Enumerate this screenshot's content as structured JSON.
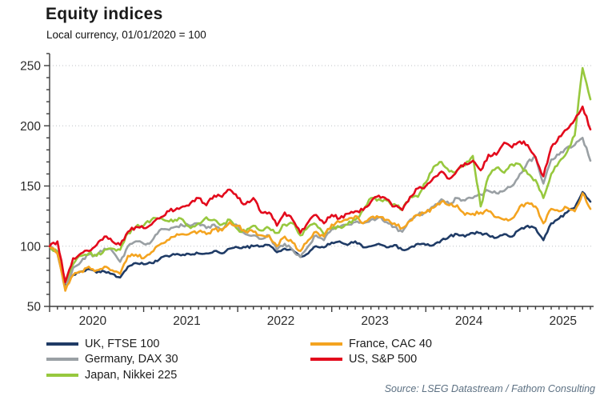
{
  "header": {
    "title": "Equity indices",
    "subtitle": "Local currency, 01/01/2020 = 100"
  },
  "source": "Source: LSEG Datastream / Fathom Consulting",
  "chart_data": {
    "type": "line",
    "title": "Equity indices",
    "subtitle": "Local currency, 01/01/2020 = 100",
    "grid": "horizontal dotted lines at 100, 150, 200, 250",
    "legend_position": "bottom, two columns",
    "ylim": [
      50,
      260
    ],
    "yticks": [
      50,
      100,
      150,
      200,
      250
    ],
    "y_minor_step": 10,
    "x_year_labels": [
      "2020",
      "2021",
      "2022",
      "2023",
      "2024",
      "2025"
    ],
    "x_frequency": "monthly",
    "months": [
      "2020-01",
      "2020-02",
      "2020-03",
      "2020-04",
      "2020-05",
      "2020-06",
      "2020-07",
      "2020-08",
      "2020-09",
      "2020-10",
      "2020-11",
      "2020-12",
      "2021-01",
      "2021-02",
      "2021-03",
      "2021-04",
      "2021-05",
      "2021-06",
      "2021-07",
      "2021-08",
      "2021-09",
      "2021-10",
      "2021-11",
      "2021-12",
      "2022-01",
      "2022-02",
      "2022-03",
      "2022-04",
      "2022-05",
      "2022-06",
      "2022-07",
      "2022-08",
      "2022-09",
      "2022-10",
      "2022-11",
      "2022-12",
      "2023-01",
      "2023-02",
      "2023-03",
      "2023-04",
      "2023-05",
      "2023-06",
      "2023-07",
      "2023-08",
      "2023-09",
      "2023-10",
      "2023-11",
      "2023-12",
      "2024-01",
      "2024-02",
      "2024-03",
      "2024-04",
      "2024-05",
      "2024-06",
      "2024-07",
      "2024-08",
      "2024-09",
      "2024-10",
      "2024-11",
      "2024-12",
      "2025-01",
      "2025-02",
      "2025-03",
      "2025-04",
      "2025-05",
      "2025-06",
      "2025-07",
      "2025-08",
      "2025-09",
      "2025-10"
    ],
    "series": [
      {
        "name": "UK, FTSE 100",
        "color": "#1f3b66",
        "values": [
          100,
          94,
          67,
          76,
          79,
          81,
          78,
          79,
          77,
          74,
          83,
          86,
          85,
          86,
          89,
          92,
          93,
          93,
          93,
          94,
          94,
          96,
          94,
          98,
          99,
          99,
          100,
          100,
          101,
          95,
          98,
          97,
          91,
          94,
          100,
          99,
          103,
          104,
          101,
          104,
          99,
          100,
          102,
          99,
          101,
          97,
          99,
          102,
          101,
          101,
          105,
          108,
          110,
          108,
          111,
          111,
          109,
          107,
          110,
          108,
          114,
          117,
          115,
          105,
          119,
          123,
          128,
          132,
          145,
          137
        ]
      },
      {
        "name": "Germany, DAX 30",
        "color": "#9aa0a4",
        "values": [
          100,
          96,
          64,
          82,
          87,
          93,
          93,
          98,
          96,
          87,
          100,
          104,
          102,
          104,
          113,
          114,
          116,
          117,
          117,
          119,
          115,
          118,
          114,
          120,
          117,
          110,
          109,
          106,
          109,
          97,
          102,
          97,
          91,
          100,
          109,
          105,
          114,
          116,
          118,
          120,
          119,
          122,
          124,
          120,
          116,
          112,
          122,
          126,
          128,
          133,
          139,
          135,
          140,
          138,
          140,
          143,
          146,
          144,
          146,
          150,
          160,
          170,
          174,
          152,
          172,
          176,
          182,
          184,
          190,
          171
        ]
      },
      {
        "name": "Japan, Nikkei 225",
        "color": "#97c83e",
        "values": [
          100,
          95,
          70,
          85,
          92,
          94,
          92,
          97,
          98,
          97,
          111,
          116,
          117,
          122,
          123,
          121,
          122,
          122,
          115,
          119,
          124,
          122,
          118,
          122,
          114,
          112,
          117,
          113,
          115,
          111,
          118,
          119,
          109,
          116,
          118,
          110,
          115,
          116,
          118,
          122,
          130,
          140,
          139,
          138,
          135,
          130,
          141,
          141,
          153,
          166,
          170,
          162,
          163,
          167,
          175,
          133,
          158,
          165,
          161,
          168,
          168,
          160,
          155,
          140,
          160,
          170,
          178,
          192,
          248,
          222
        ]
      },
      {
        "name": "France, CAC 40",
        "color": "#f4a420",
        "values": [
          100,
          94,
          63,
          76,
          79,
          83,
          80,
          83,
          80,
          77,
          92,
          93,
          90,
          95,
          101,
          105,
          108,
          110,
          111,
          112,
          110,
          114,
          113,
          120,
          117,
          112,
          112,
          109,
          109,
          100,
          108,
          103,
          96,
          105,
          112,
          108,
          118,
          120,
          122,
          125,
          119,
          124,
          124,
          122,
          119,
          115,
          121,
          126,
          128,
          132,
          137,
          134,
          134,
          126,
          127,
          128,
          129,
          124,
          122,
          123,
          133,
          136,
          133,
          119,
          131,
          129,
          132,
          129,
          144,
          131
        ]
      },
      {
        "name": "US, S&P 500",
        "color": "#e30a1c",
        "values": [
          100,
          104,
          70,
          90,
          94,
          96,
          101,
          108,
          104,
          101,
          112,
          116,
          115,
          118,
          123,
          129,
          130,
          133,
          136,
          140,
          134,
          142,
          141,
          147,
          140,
          135,
          140,
          128,
          128,
          117,
          128,
          122,
          111,
          120,
          126,
          119,
          126,
          123,
          127,
          129,
          130,
          137,
          142,
          139,
          133,
          130,
          141,
          148,
          150,
          157,
          162,
          156,
          163,
          169,
          171,
          163,
          176,
          176,
          186,
          182,
          187,
          184,
          174,
          158,
          182,
          191,
          197,
          205,
          216,
          197
        ]
      }
    ]
  }
}
